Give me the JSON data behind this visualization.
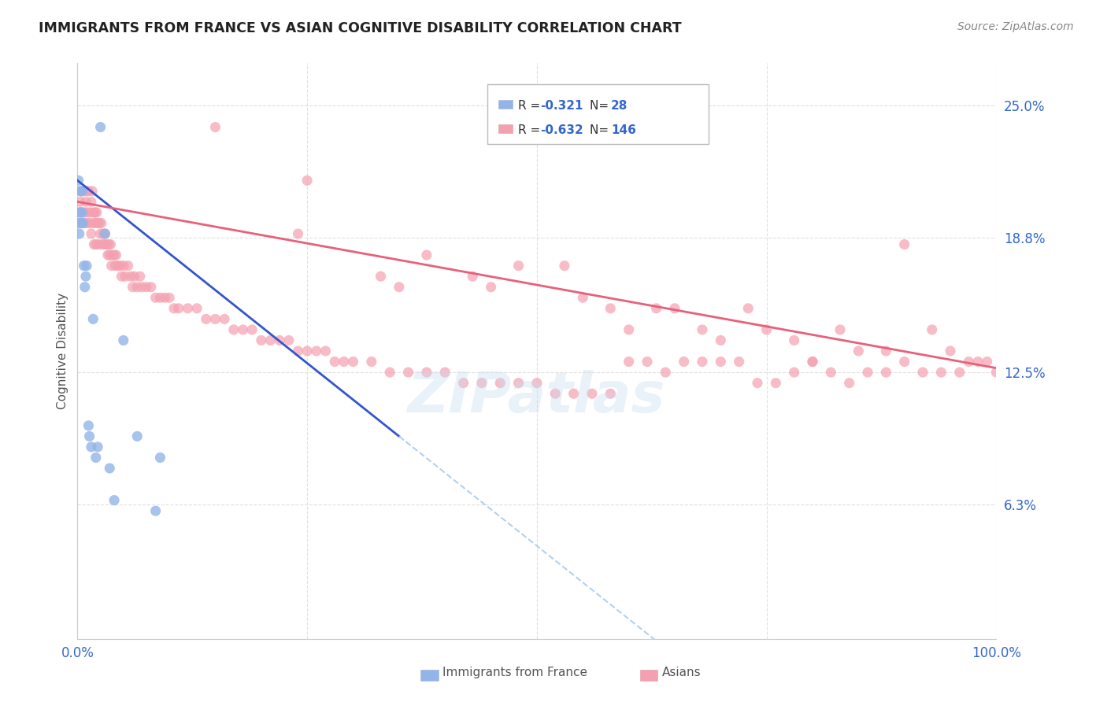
{
  "title": "IMMIGRANTS FROM FRANCE VS ASIAN COGNITIVE DISABILITY CORRELATION CHART",
  "source": "Source: ZipAtlas.com",
  "ylabel": "Cognitive Disability",
  "ytick_vals": [
    0.063,
    0.125,
    0.188,
    0.25
  ],
  "ytick_labels": [
    "6.3%",
    "12.5%",
    "18.8%",
    "25.0%"
  ],
  "xlim": [
    0.0,
    1.0
  ],
  "ylim": [
    0.0,
    0.27
  ],
  "blue_color": "#92B4E8",
  "pink_color": "#F4A0B0",
  "blue_line_color": "#3355CC",
  "pink_line_color": "#E8607A",
  "dashed_line_color": "#AACCEE",
  "watermark": "ZIPatlas",
  "background_color": "#FFFFFF",
  "legend_r1": "-0.321",
  "legend_n1": "28",
  "legend_r2": "-0.632",
  "legend_n2": "146",
  "france_x": [
    0.001,
    0.001,
    0.002,
    0.002,
    0.003,
    0.003,
    0.004,
    0.005,
    0.005,
    0.006,
    0.007,
    0.008,
    0.009,
    0.01,
    0.012,
    0.013,
    0.015,
    0.017,
    0.02,
    0.022,
    0.025,
    0.03,
    0.035,
    0.04,
    0.05,
    0.065,
    0.085,
    0.09
  ],
  "france_y": [
    0.195,
    0.215,
    0.2,
    0.19,
    0.21,
    0.2,
    0.195,
    0.21,
    0.2,
    0.195,
    0.175,
    0.165,
    0.17,
    0.175,
    0.1,
    0.095,
    0.09,
    0.15,
    0.085,
    0.09,
    0.24,
    0.19,
    0.08,
    0.065,
    0.14,
    0.095,
    0.06,
    0.085
  ],
  "asian_x": [
    0.003,
    0.004,
    0.004,
    0.005,
    0.006,
    0.007,
    0.008,
    0.009,
    0.01,
    0.01,
    0.011,
    0.012,
    0.013,
    0.014,
    0.015,
    0.015,
    0.016,
    0.017,
    0.018,
    0.018,
    0.019,
    0.02,
    0.02,
    0.021,
    0.022,
    0.023,
    0.024,
    0.025,
    0.026,
    0.027,
    0.028,
    0.029,
    0.03,
    0.032,
    0.033,
    0.034,
    0.035,
    0.036,
    0.037,
    0.038,
    0.04,
    0.041,
    0.042,
    0.044,
    0.046,
    0.048,
    0.05,
    0.052,
    0.055,
    0.058,
    0.06,
    0.062,
    0.065,
    0.068,
    0.07,
    0.075,
    0.08,
    0.085,
    0.09,
    0.095,
    0.1,
    0.105,
    0.11,
    0.12,
    0.13,
    0.14,
    0.15,
    0.16,
    0.17,
    0.18,
    0.19,
    0.2,
    0.21,
    0.22,
    0.23,
    0.24,
    0.25,
    0.26,
    0.27,
    0.28,
    0.29,
    0.3,
    0.32,
    0.34,
    0.36,
    0.38,
    0.4,
    0.42,
    0.44,
    0.46,
    0.48,
    0.5,
    0.52,
    0.54,
    0.56,
    0.58,
    0.6,
    0.62,
    0.64,
    0.66,
    0.68,
    0.7,
    0.72,
    0.74,
    0.76,
    0.78,
    0.8,
    0.82,
    0.84,
    0.86,
    0.88,
    0.9,
    0.92,
    0.94,
    0.95,
    0.96,
    0.97,
    0.98,
    0.99,
    1.0,
    0.35,
    0.45,
    0.55,
    0.65,
    0.75,
    0.85,
    0.24,
    0.33,
    0.43,
    0.53,
    0.63,
    0.73,
    0.83,
    0.93,
    0.38,
    0.48,
    0.58,
    0.68,
    0.78,
    0.88,
    0.15,
    0.25,
    0.6,
    0.7,
    0.8,
    0.9
  ],
  "asian_y": [
    0.205,
    0.21,
    0.195,
    0.2,
    0.21,
    0.195,
    0.2,
    0.205,
    0.195,
    0.21,
    0.2,
    0.21,
    0.195,
    0.2,
    0.205,
    0.19,
    0.21,
    0.195,
    0.2,
    0.185,
    0.2,
    0.195,
    0.185,
    0.2,
    0.195,
    0.185,
    0.195,
    0.19,
    0.195,
    0.185,
    0.19,
    0.185,
    0.19,
    0.185,
    0.18,
    0.185,
    0.18,
    0.185,
    0.175,
    0.18,
    0.18,
    0.175,
    0.18,
    0.175,
    0.175,
    0.17,
    0.175,
    0.17,
    0.175,
    0.17,
    0.165,
    0.17,
    0.165,
    0.17,
    0.165,
    0.165,
    0.165,
    0.16,
    0.16,
    0.16,
    0.16,
    0.155,
    0.155,
    0.155,
    0.155,
    0.15,
    0.15,
    0.15,
    0.145,
    0.145,
    0.145,
    0.14,
    0.14,
    0.14,
    0.14,
    0.135,
    0.135,
    0.135,
    0.135,
    0.13,
    0.13,
    0.13,
    0.13,
    0.125,
    0.125,
    0.125,
    0.125,
    0.12,
    0.12,
    0.12,
    0.12,
    0.12,
    0.115,
    0.115,
    0.115,
    0.115,
    0.13,
    0.13,
    0.125,
    0.13,
    0.13,
    0.13,
    0.13,
    0.12,
    0.12,
    0.125,
    0.13,
    0.125,
    0.12,
    0.125,
    0.125,
    0.13,
    0.125,
    0.125,
    0.135,
    0.125,
    0.13,
    0.13,
    0.13,
    0.125,
    0.165,
    0.165,
    0.16,
    0.155,
    0.145,
    0.135,
    0.19,
    0.17,
    0.17,
    0.175,
    0.155,
    0.155,
    0.145,
    0.145,
    0.18,
    0.175,
    0.155,
    0.145,
    0.14,
    0.135,
    0.24,
    0.215,
    0.145,
    0.14,
    0.13,
    0.185
  ]
}
